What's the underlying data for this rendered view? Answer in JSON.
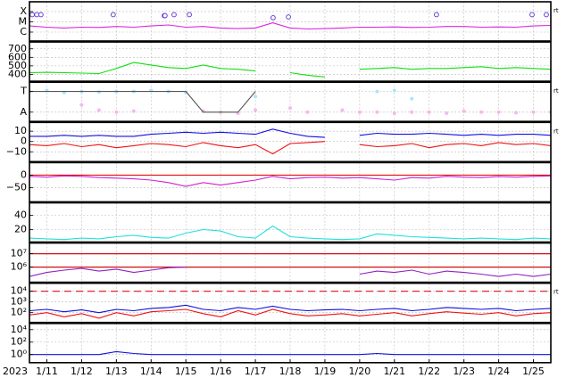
{
  "chart_data": {
    "type": "line",
    "year_label": "2023",
    "x": [
      10.5,
      11,
      11.5,
      12,
      12.5,
      13,
      13.5,
      14,
      14.5,
      15,
      15.5,
      16,
      16.5,
      17,
      17.5,
      18,
      18.5,
      19,
      19.5,
      20,
      20.5,
      21,
      21.5,
      22,
      22.5,
      23,
      23.5,
      24,
      24.5,
      25,
      25.5
    ],
    "xlim": [
      10.5,
      25.5
    ],
    "xticks": [
      {
        "value": 11,
        "label": "1/11"
      },
      {
        "value": 12,
        "label": "1/12"
      },
      {
        "value": 13,
        "label": "1/13"
      },
      {
        "value": 14,
        "label": "1/14"
      },
      {
        "value": 15,
        "label": "1/15"
      },
      {
        "value": 16,
        "label": "1/16"
      },
      {
        "value": 17,
        "label": "1/17"
      },
      {
        "value": 18,
        "label": "1/18"
      },
      {
        "value": 19,
        "label": "1/19"
      },
      {
        "value": 20,
        "label": "1/20"
      },
      {
        "value": 21,
        "label": "1/21"
      },
      {
        "value": 22,
        "label": "1/22"
      },
      {
        "value": 23,
        "label": "1/23"
      },
      {
        "value": 24,
        "label": "1/24"
      },
      {
        "value": 25,
        "label": "1/25"
      }
    ],
    "grid": true,
    "panels": [
      {
        "log": true,
        "ylim": [
          1.35e-07,
          0.0009
        ],
        "tag": "rt",
        "yticks": [
          {
            "value": 0.0001,
            "label": "X"
          },
          {
            "value": 1e-05,
            "label": "M"
          },
          {
            "value": 1e-06,
            "label": "C"
          }
        ],
        "series": [
          {
            "type": "line",
            "color": "#e020e0",
            "values": [
              4e-06,
              3e-06,
              2.5e-06,
              3e-06,
              2.8e-06,
              3.5e-06,
              3e-06,
              4e-06,
              5e-06,
              3e-06,
              3.5e-06,
              2.5e-06,
              2.2e-06,
              2.5e-06,
              8e-06,
              2.5e-06,
              2e-06,
              2.2e-06,
              2.5e-06,
              3e-06,
              3e-06,
              3.2e-06,
              2.8e-06,
              3e-06,
              3.5e-06,
              3.5e-06,
              3e-06,
              3.2e-06,
              3e-06,
              4e-06,
              4.5e-06
            ]
          },
          {
            "type": "scatter",
            "marker": "ring",
            "color": "#6a3dd8",
            "x": [
              10.58,
              10.71,
              10.83,
              12.91,
              14.38,
              14.4,
              14.66,
              15.1,
              17.51,
              17.95,
              22.21,
              24.96,
              25.37
            ],
            "values": [
              5e-05,
              5e-05,
              5e-05,
              5e-05,
              4e-05,
              4e-05,
              5e-05,
              5e-05,
              2.5e-05,
              3e-05,
              5e-05,
              5e-05,
              5e-05
            ]
          }
        ]
      },
      {
        "log": false,
        "ylim": [
          320,
          780
        ],
        "yticks": [
          700,
          600,
          500,
          400
        ],
        "series": [
          {
            "type": "line",
            "color": "#10e010",
            "values": [
              420,
              425,
              420,
              415,
              410,
              470,
              540,
              510,
              480,
              470,
              510,
              470,
              460,
              440,
              null,
              420,
              390,
              370,
              null,
              460,
              470,
              480,
              460,
              470,
              470,
              480,
              490,
              470,
              480,
              470,
              460
            ]
          }
        ]
      },
      {
        "log": false,
        "ylim": [
          -1.9,
          1.9
        ],
        "tag": "rt",
        "yticks": [
          {
            "value": 1,
            "label": "T"
          },
          {
            "value": -1,
            "label": "A"
          }
        ],
        "series": [
          {
            "type": "scatter",
            "marker": "dot",
            "color": "#a8e4ff",
            "values": [
              1,
              1.1,
              0.9,
              1,
              0.95,
              1,
              1,
              1.1,
              1,
              0.9,
              null,
              null,
              null,
              0.5,
              null,
              null,
              null,
              null,
              null,
              null,
              1,
              1.1,
              0.3,
              null,
              null,
              null,
              null,
              null,
              null,
              null,
              null
            ]
          },
          {
            "type": "scatter",
            "marker": "dot",
            "color": "#f5b8ee",
            "values": [
              null,
              null,
              null,
              -0.3,
              -0.8,
              -1,
              -0.9,
              null,
              null,
              null,
              -0.9,
              -1,
              -1.1,
              -0.8,
              null,
              -0.6,
              -1,
              null,
              -0.8,
              -1,
              -1,
              -1.1,
              -1,
              -1,
              -1.1,
              -0.9,
              -1,
              -1,
              -1.05,
              -1,
              -1
            ]
          },
          {
            "type": "line",
            "color": "#555555",
            "values": [
              1,
              1,
              1,
              1,
              1,
              1,
              1,
              1,
              1,
              1,
              -1,
              -1,
              -1,
              1,
              null,
              null,
              null,
              null,
              null,
              null,
              null,
              null,
              null,
              null,
              null,
              null,
              null,
              null,
              null,
              null,
              null
            ]
          }
        ]
      },
      {
        "log": false,
        "ylim": [
          -19.5,
          18.5
        ],
        "tag": "rt",
        "yticks": [
          10,
          0,
          {
            "value": -10,
            "label": "−10"
          }
        ],
        "series": [
          {
            "type": "line",
            "color": "#1010e0",
            "values": [
              5,
              5,
              6,
              5,
              6,
              5,
              5,
              7,
              8,
              9,
              8,
              9,
              8,
              7,
              12,
              8,
              5,
              4,
              null,
              6,
              8,
              7,
              7,
              8,
              7,
              6,
              7,
              6,
              7,
              7,
              6
            ]
          },
          {
            "type": "line",
            "color": "#f01010",
            "values": [
              -3,
              -4,
              -2,
              -5,
              -3,
              -6,
              -4,
              -2,
              -3,
              -5,
              -1,
              -4,
              -6,
              -3,
              -12,
              -2,
              -1,
              0,
              null,
              -3,
              -5,
              -4,
              -2,
              -6,
              -3,
              -2,
              -4,
              -1,
              -3,
              -2,
              -4
            ]
          }
        ]
      },
      {
        "log": false,
        "ylim": [
          -107,
          50
        ],
        "yticks": [
          0,
          {
            "value": -50,
            "label": "−50"
          }
        ],
        "ref_lines": [
          {
            "value": 0,
            "color": "#e01010"
          }
        ],
        "series": [
          {
            "type": "line",
            "color": "#d020d0",
            "values": [
              -5,
              -8,
              -3,
              -5,
              -10,
              -12,
              -15,
              -20,
              -30,
              -45,
              -30,
              -40,
              -30,
              -20,
              -5,
              -15,
              -10,
              -8,
              -12,
              -10,
              -15,
              -20,
              -10,
              -12,
              -5,
              -8,
              -10,
              -6,
              -8,
              -5,
              -3
            ]
          }
        ]
      },
      {
        "log": false,
        "ylim": [
          2.5,
          57.5
        ],
        "yticks": [
          40,
          20
        ],
        "series": [
          {
            "type": "line",
            "color": "#20e0e0",
            "values": [
              8,
              7,
              6,
              8,
              7,
              10,
              12,
              9,
              8,
              15,
              20,
              18,
              10,
              8,
              25,
              10,
              8,
              7,
              6,
              7,
              14,
              12,
              10,
              9,
              8,
              7,
              8,
              7,
              6,
              8,
              7
            ]
          }
        ]
      },
      {
        "log": true,
        "ylim": [
          74000,
          63000000
        ],
        "yticks": [
          {
            "value": 10000000,
            "label": "10⁷"
          },
          {
            "value": 1000000,
            "label": "10⁶"
          }
        ],
        "ref_lines": [
          {
            "value": 10000000,
            "color": "#d01010"
          },
          {
            "value": 1000000,
            "color": "#d01010"
          }
        ],
        "series": [
          {
            "type": "line",
            "color": "#9020c0",
            "values": [
              200000,
              400000,
              600000,
              800000,
              500000,
              700000,
              400000,
              600000,
              900000,
              1000000,
              null,
              null,
              null,
              null,
              800000,
              null,
              null,
              null,
              null,
              300000,
              500000,
              400000,
              600000,
              300000,
              500000,
              400000,
              300000,
              200000,
              300000,
              200000,
              300000
            ]
          }
        ]
      },
      {
        "log": true,
        "ylim": [
          12,
          56000
        ],
        "tag": "rt",
        "yticks": [
          {
            "value": 10000,
            "label": "10⁴"
          },
          {
            "value": 1000,
            "label": "10³"
          },
          {
            "value": 100,
            "label": "10²"
          }
        ],
        "ref_lines": [
          {
            "value": 10000,
            "color": "#e01010",
            "dash": true
          }
        ],
        "series": [
          {
            "type": "line",
            "color": "#1010e0",
            "values": [
              150,
              200,
              120,
              180,
              100,
              200,
              150,
              250,
              300,
              500,
              200,
              150,
              300,
              200,
              400,
              200,
              150,
              180,
              200,
              150,
              200,
              250,
              150,
              200,
              300,
              250,
              200,
              250,
              150,
              200,
              250
            ]
          },
          {
            "type": "line",
            "color": "#f01010",
            "values": [
              60,
              100,
              40,
              80,
              30,
              100,
              50,
              120,
              150,
              200,
              80,
              40,
              150,
              60,
              200,
              80,
              50,
              60,
              80,
              50,
              70,
              100,
              50,
              80,
              120,
              90,
              70,
              100,
              50,
              80,
              100
            ]
          }
        ]
      },
      {
        "log": true,
        "ylim": [
          0.05,
          100000
        ],
        "yticks": [
          {
            "value": 10000,
            "label": "10⁴"
          },
          {
            "value": 100,
            "label": "10²"
          },
          {
            "value": 1,
            "label": "10⁰"
          }
        ],
        "series": [
          {
            "type": "line",
            "color": "#1010e0",
            "values": [
              1,
              1,
              1,
              1,
              1,
              3,
              1.5,
              1,
              1,
              1,
              1,
              1,
              1,
              1,
              1,
              1,
              1,
              1,
              1,
              1,
              1.5,
              1,
              1,
              1,
              1,
              1,
              1,
              1,
              1,
              1,
              1
            ]
          }
        ]
      }
    ]
  }
}
